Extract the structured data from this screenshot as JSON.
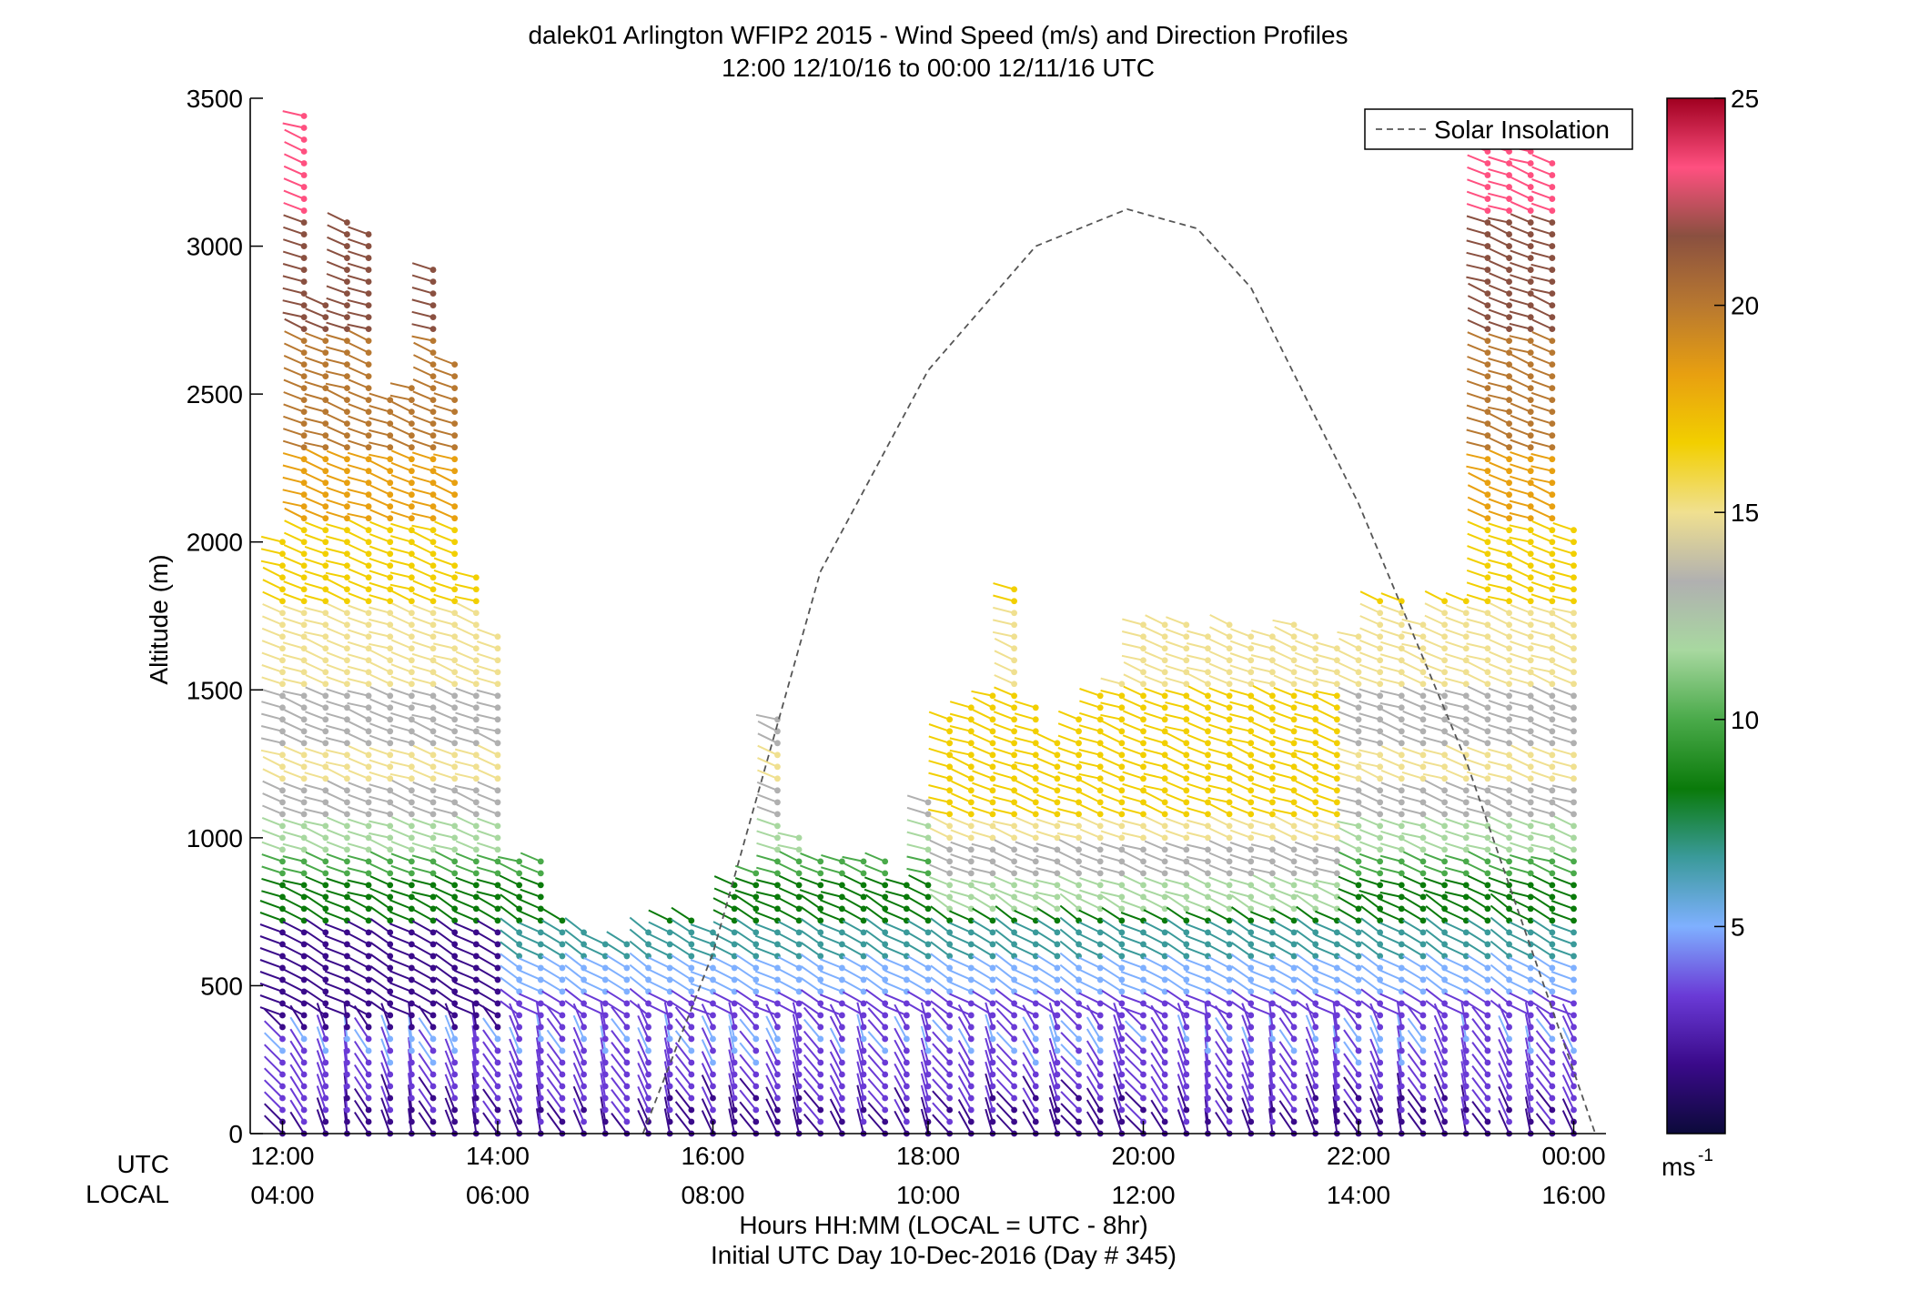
{
  "chart_data": {
    "type": "wind-barb profile (height vs time)",
    "title": "dalek01 Arlington WFIP2 2015 - Wind Speed (m/s) and Direction Profiles",
    "subtitle": "12:00 12/10/16 to 00:00 12/11/16  UTC",
    "ylabel": "Altitude (m)",
    "xlabel": "Hours HH:MM  (LOCAL = UTC - 8hr)",
    "xlabel2": "Initial UTC Day 10-Dec-2016 (Day # 345)",
    "ylim": [
      0,
      3500
    ],
    "yticks": [
      0,
      500,
      1000,
      1500,
      2000,
      2500,
      3000,
      3500
    ],
    "xlim_hours_utc": [
      11.7,
      24.3
    ],
    "x_row_labels": [
      "UTC",
      "LOCAL"
    ],
    "xticks_utc": [
      "12:00",
      "14:00",
      "16:00",
      "18:00",
      "20:00",
      "22:00",
      "00:00"
    ],
    "xticks_local": [
      "04:00",
      "06:00",
      "08:00",
      "10:00",
      "12:00",
      "14:00",
      "16:00"
    ],
    "xtick_hours_utc": [
      12,
      14,
      16,
      18,
      20,
      22,
      24
    ],
    "colorbar": {
      "label": "ms",
      "label_exponent": "-1",
      "range": [
        0,
        25
      ],
      "ticks": [
        5,
        10,
        15,
        20,
        25
      ],
      "colors": [
        "#0c0a3a",
        "#3a0a8a",
        "#6a3ad6",
        "#7fb0ff",
        "#3a9a9a",
        "#0a7a0a",
        "#4aaa4a",
        "#a8d8a0",
        "#b0b0b0",
        "#f0e090",
        "#f2cf00",
        "#e8a010",
        "#b87830",
        "#8a5040",
        "#ff5080",
        "#a00020"
      ]
    },
    "legend": {
      "position": "top-right",
      "entries": [
        "Solar Insolation"
      ]
    },
    "solar_insolation": {
      "style": "dashed",
      "x": [
        15.35,
        16,
        17,
        18,
        19,
        19.85,
        20.5,
        21,
        22,
        23,
        24.2
      ],
      "y": [
        0,
        610,
        1900,
        2580,
        3000,
        3125,
        3060,
        2860,
        2130,
        1260,
        0
      ]
    },
    "barb_profiles": [
      {
        "t": 12.0,
        "top": 2000
      },
      {
        "t": 12.2,
        "top": 3450
      },
      {
        "t": 12.4,
        "top": 2800
      },
      {
        "t": 12.6,
        "top": 3100
      },
      {
        "t": 12.8,
        "top": 3050
      },
      {
        "t": 13.0,
        "top": 2500
      },
      {
        "t": 13.2,
        "top": 2550
      },
      {
        "t": 13.4,
        "top": 2950
      },
      {
        "t": 13.6,
        "top": 2600
      },
      {
        "t": 13.8,
        "top": 1900
      },
      {
        "t": 14.0,
        "top": 1700
      },
      {
        "t": 14.2,
        "top": 950
      },
      {
        "t": 14.4,
        "top": 950
      },
      {
        "t": 14.6,
        "top": 750
      },
      {
        "t": 14.8,
        "top": 700
      },
      {
        "t": 15.0,
        "top": 650
      },
      {
        "t": 15.2,
        "top": 650
      },
      {
        "t": 15.4,
        "top": 700
      },
      {
        "t": 15.6,
        "top": 750
      },
      {
        "t": 15.8,
        "top": 750
      },
      {
        "t": 16.0,
        "top": 700
      },
      {
        "t": 16.2,
        "top": 850
      },
      {
        "t": 16.4,
        "top": 900
      },
      {
        "t": 16.6,
        "top": 1400
      },
      {
        "t": 16.8,
        "top": 1000
      },
      {
        "t": 17.0,
        "top": 950
      },
      {
        "t": 17.2,
        "top": 950
      },
      {
        "t": 17.4,
        "top": 950
      },
      {
        "t": 17.6,
        "top": 950
      },
      {
        "t": 17.8,
        "top": 850
      },
      {
        "t": 18.0,
        "top": 1150
      },
      {
        "t": 18.2,
        "top": 1400
      },
      {
        "t": 18.4,
        "top": 1450
      },
      {
        "t": 18.6,
        "top": 1500
      },
      {
        "t": 18.8,
        "top": 1850
      },
      {
        "t": 19.0,
        "top": 1450
      },
      {
        "t": 19.2,
        "top": 1350
      },
      {
        "t": 19.4,
        "top": 1400
      },
      {
        "t": 19.6,
        "top": 1500
      },
      {
        "t": 19.8,
        "top": 1550
      },
      {
        "t": 20.0,
        "top": 1750
      },
      {
        "t": 20.2,
        "top": 1750
      },
      {
        "t": 20.4,
        "top": 1750
      },
      {
        "t": 20.6,
        "top": 1700
      },
      {
        "t": 20.8,
        "top": 1750
      },
      {
        "t": 21.0,
        "top": 1700
      },
      {
        "t": 21.2,
        "top": 1700
      },
      {
        "t": 21.4,
        "top": 1750
      },
      {
        "t": 21.6,
        "top": 1700
      },
      {
        "t": 21.8,
        "top": 1650
      },
      {
        "t": 22.0,
        "top": 1700
      },
      {
        "t": 22.2,
        "top": 1800
      },
      {
        "t": 22.4,
        "top": 1800
      },
      {
        "t": 22.6,
        "top": 1750
      },
      {
        "t": 22.8,
        "top": 1800
      },
      {
        "t": 23.0,
        "top": 1800
      },
      {
        "t": 23.2,
        "top": 3400
      },
      {
        "t": 23.4,
        "top": 3400
      },
      {
        "t": 23.6,
        "top": 3350
      },
      {
        "t": 23.8,
        "top": 3300
      },
      {
        "t": 24.0,
        "top": 2050
      }
    ]
  }
}
